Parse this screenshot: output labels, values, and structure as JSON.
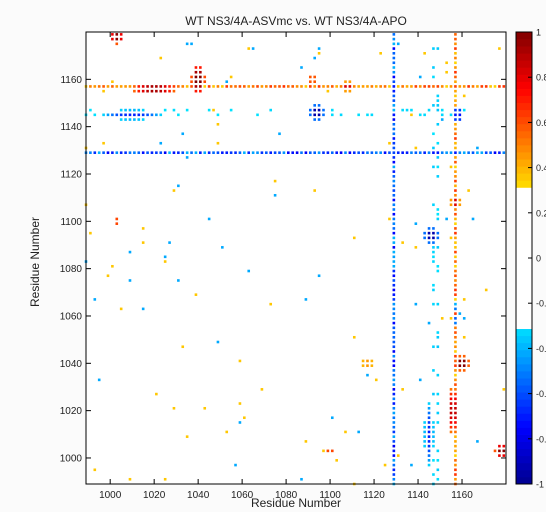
{
  "chart_data": {
    "type": "heatmap",
    "title": "WT NS3/4A-ASVmc vs. WT NS3/4A-APO",
    "xlabel": "Residue Number",
    "ylabel": "Residue Number",
    "xlim": [
      989,
      1180
    ],
    "ylim": [
      989,
      1180
    ],
    "x_ticks": [
      "1000",
      "1020",
      "1040",
      "1060",
      "1080",
      "1100",
      "1120",
      "1140",
      "1160"
    ],
    "y_ticks": [
      "1000",
      "1020",
      "1040",
      "1060",
      "1080",
      "1100",
      "1120",
      "1140",
      "1160"
    ],
    "colorbar": {
      "range": [
        -1,
        1
      ],
      "tick_labels": [
        "1",
        "0.8",
        "0.6",
        "0.4",
        "0.2",
        "0",
        "-0.2",
        "-0.4",
        "-0.6",
        "-0.8",
        "-1"
      ],
      "blank_band": [
        -0.3,
        0.3
      ]
    },
    "colormap": [
      "#00008f",
      "#0000ff",
      "#0080ff",
      "#00ffff",
      "#80ff80",
      "#ffff00",
      "#ff8000",
      "#ff0000",
      "#800000"
    ],
    "cross_lines": [
      {
        "orientation": "horizontal",
        "residue": 1129,
        "value": -0.65
      },
      {
        "orientation": "vertical",
        "residue": 1129,
        "value": -0.65
      },
      {
        "orientation": "horizontal",
        "residue": 1157,
        "value": 0.55
      },
      {
        "orientation": "vertical",
        "residue": 1157,
        "value": 0.55
      },
      {
        "orientation": "vertical",
        "residue": 1148,
        "value": -0.55
      },
      {
        "orientation": "horizontal",
        "residue": 1146,
        "value": -0.5
      },
      {
        "orientation": "vertical",
        "residue": 1040,
        "value": 0.45
      },
      {
        "orientation": "horizontal",
        "residue": 1040,
        "value": 0.45
      }
    ],
    "hotspots": [
      {
        "x": 1040,
        "y": 1160,
        "value": 0.95,
        "rx": 3,
        "ry": 6
      },
      {
        "x": 1003,
        "y": 1178,
        "value": 0.9,
        "rx": 3,
        "ry": 3
      },
      {
        "x": 1020,
        "y": 1156,
        "value": 0.9,
        "rx": 10,
        "ry": 2
      },
      {
        "x": 1160,
        "y": 1040,
        "value": 0.95,
        "rx": 3,
        "ry": 3
      },
      {
        "x": 1178,
        "y": 1003,
        "value": 0.9,
        "rx": 3,
        "ry": 3
      },
      {
        "x": 1156,
        "y": 1020,
        "value": 0.85,
        "rx": 2,
        "ry": 10
      },
      {
        "x": 1157,
        "y": 1108,
        "value": 0.75,
        "rx": 2,
        "ry": 3
      },
      {
        "x": 1108,
        "y": 1157,
        "value": 0.75,
        "rx": 3,
        "ry": 2
      },
      {
        "x": 1094,
        "y": 1146,
        "value": -0.9,
        "rx": 3,
        "ry": 3
      },
      {
        "x": 1146,
        "y": 1094,
        "value": -0.9,
        "rx": 3,
        "ry": 3
      },
      {
        "x": 1145,
        "y": 1010,
        "value": -0.6,
        "rx": 2,
        "ry": 12
      },
      {
        "x": 1010,
        "y": 1145,
        "value": -0.6,
        "rx": 12,
        "ry": 2
      },
      {
        "x": 1003,
        "y": 1100,
        "value": 0.6,
        "rx": 2,
        "ry": 2
      },
      {
        "x": 1100,
        "y": 1003,
        "value": 0.6,
        "rx": 2,
        "ry": 2
      },
      {
        "x": 1092,
        "y": 1160,
        "value": 0.6,
        "rx": 3,
        "ry": 2
      },
      {
        "x": 1117,
        "y": 1040,
        "value": 0.7,
        "rx": 5,
        "ry": 1
      },
      {
        "x": 1157,
        "y": 1060,
        "value": -0.5,
        "rx": 1,
        "ry": 6
      },
      {
        "x": 1158,
        "y": 1145,
        "value": -0.7,
        "rx": 2,
        "ry": 4
      }
    ]
  }
}
